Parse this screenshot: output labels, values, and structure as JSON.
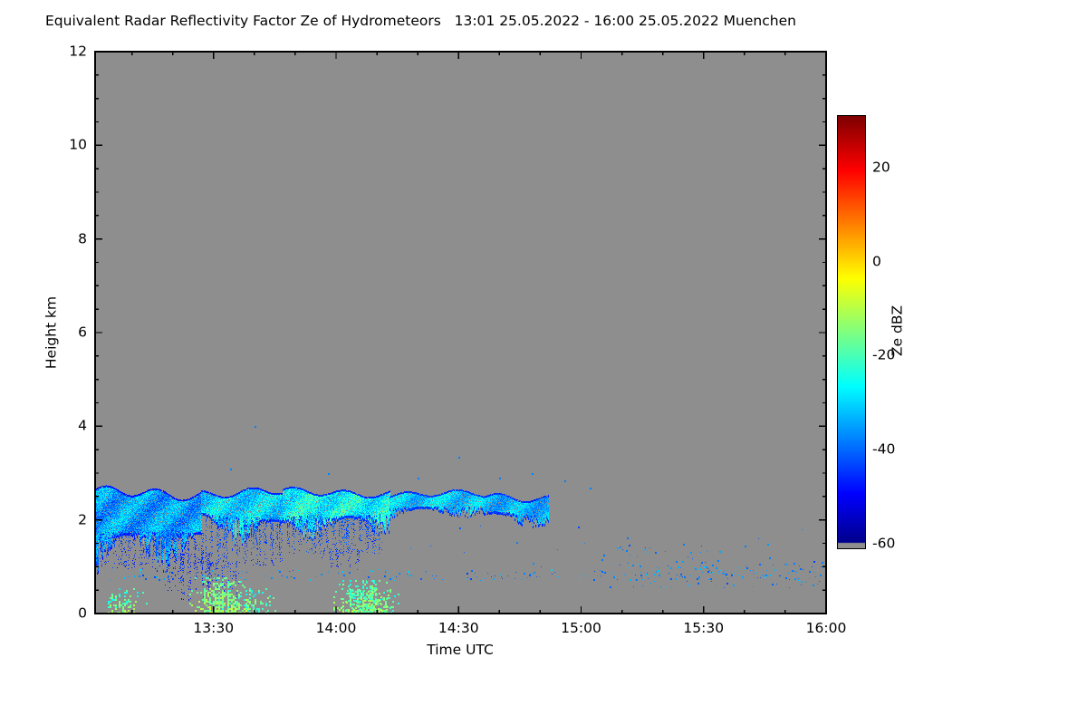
{
  "chart_data": {
    "type": "heatmap",
    "title": "Equivalent Radar Reflectivity Factor Ze of Hydrometeors   13:01 25.05.2022 - 16:00 25.05.2022 Muenchen",
    "station": "Muenchen",
    "time_start": "13:01 25.05.2022",
    "time_end": "16:00 25.05.2022",
    "xlabel": "Time UTC",
    "ylabel": "Height km",
    "x_range_minutes": [
      1,
      180
    ],
    "x_ticks": [
      "13:30",
      "14:00",
      "14:30",
      "15:00",
      "15:30",
      "16:00"
    ],
    "x_tick_minutes": [
      30,
      60,
      90,
      120,
      150,
      180
    ],
    "y_ticks": [
      0,
      2,
      4,
      6,
      8,
      10,
      12
    ],
    "ylim": [
      0,
      12
    ],
    "grid": false,
    "background_color": "#8e8e8e",
    "colorbar": {
      "label": "Ze dBZ",
      "ticks": [
        20,
        0,
        -20,
        -40,
        -60
      ],
      "range": [
        -61,
        31
      ],
      "gray_below": -60,
      "colormap": "jet"
    },
    "features": [
      {
        "kind": "cloud_layer",
        "t0": 1,
        "t1": 27,
        "top": 2.58,
        "base": 1.6,
        "top_jitter": 0.1,
        "base_jitter": 0.45,
        "dbz": -35,
        "dbz_spread": 7,
        "edge_dbz": -47,
        "density": 0.93,
        "phase": 0.3
      },
      {
        "kind": "streaks",
        "t0": 2,
        "t1": 28,
        "top": 1.75,
        "base": 0.95,
        "density": 0.4,
        "dbz": -44,
        "dbz_spread": 4,
        "phase": 1.3
      },
      {
        "kind": "streaks",
        "t0": 18,
        "t1": 29,
        "top": 1.3,
        "base": 0.3,
        "density": 0.33,
        "dbz": -45,
        "dbz_spread": 3,
        "phase": 0.2
      },
      {
        "kind": "cloud_layer",
        "t0": 27,
        "t1": 47,
        "top": 2.6,
        "base": 2.05,
        "top_jitter": 0.08,
        "base_jitter": 0.3,
        "dbz": -30,
        "dbz_spread": 7,
        "edge_dbz": -46,
        "density": 0.92,
        "phase": 1.1
      },
      {
        "kind": "streaks",
        "t0": 28,
        "t1": 47,
        "top": 2.05,
        "base": 1.05,
        "density": 0.5,
        "dbz": -42,
        "dbz_spread": 4,
        "phase": 2.6
      },
      {
        "kind": "streaks",
        "t0": 29,
        "t1": 36,
        "top": 1.1,
        "base": 0.35,
        "density": 0.3,
        "dbz": -45,
        "dbz_spread": 3,
        "phase": 1.1
      },
      {
        "kind": "cloud_layer",
        "t0": 47,
        "t1": 73,
        "top": 2.6,
        "base": 2.1,
        "top_jitter": 0.07,
        "base_jitter": 0.25,
        "dbz": -26,
        "dbz_spread": 8,
        "edge_dbz": -45,
        "density": 0.95,
        "phase": 2.2
      },
      {
        "kind": "streaks",
        "t0": 48,
        "t1": 71,
        "top": 2.1,
        "base": 1.3,
        "density": 0.5,
        "dbz": -41,
        "dbz_spread": 5,
        "phase": 0.6
      },
      {
        "kind": "streaks",
        "t0": 56,
        "t1": 66,
        "top": 1.4,
        "base": 1.0,
        "density": 0.3,
        "dbz": -44,
        "dbz_spread": 3,
        "phase": 2.0
      },
      {
        "kind": "cloud_layer",
        "t0": 73,
        "t1": 96,
        "top": 2.56,
        "base": 2.22,
        "top_jitter": 0.06,
        "base_jitter": 0.12,
        "dbz": -31,
        "dbz_spread": 5,
        "edge_dbz": -44,
        "density": 0.9,
        "phase": 0.8
      },
      {
        "kind": "cloud_layer",
        "t0": 96,
        "t1": 112,
        "top": 2.5,
        "base": 2.12,
        "top_jitter": 0.07,
        "base_jitter": 0.15,
        "dbz": -33,
        "dbz_spread": 5,
        "edge_dbz": -45,
        "density": 0.9,
        "phase": 1.9
      },
      {
        "kind": "patches",
        "t0": 4,
        "t1": 75,
        "top": 0.55,
        "base": 0.02,
        "density": 0.3,
        "dbz": -16,
        "dbz_spread": 7,
        "phase": 0.4
      },
      {
        "kind": "patches",
        "t0": 24,
        "t1": 41,
        "top": 0.78,
        "base": 0.02,
        "density": 0.5,
        "dbz": -12,
        "dbz_spread": 6,
        "phase": 1.7
      },
      {
        "kind": "patches",
        "t0": 55,
        "t1": 73,
        "top": 0.72,
        "base": 0.02,
        "density": 0.45,
        "dbz": -14,
        "dbz_spread": 6,
        "phase": 0.9
      },
      {
        "kind": "speckle",
        "t0": 4,
        "t1": 179,
        "top": 0.95,
        "base": 0.72,
        "density": 0.22,
        "dbz": -37,
        "dbz_spread": 7
      },
      {
        "kind": "speckle",
        "t0": 126,
        "t1": 179,
        "top": 1.15,
        "base": 0.55,
        "density": 0.3,
        "dbz": -37,
        "dbz_spread": 6
      },
      {
        "kind": "speckle",
        "t0": 128,
        "t1": 156,
        "top": 1.55,
        "base": 0.85,
        "density": 0.22,
        "dbz": -38,
        "dbz_spread": 5
      },
      {
        "kind": "speckle",
        "t0": 78,
        "t1": 179,
        "top": 1.9,
        "base": 1.0,
        "density": 0.05,
        "dbz": -39,
        "dbz_spread": 4
      },
      {
        "kind": "speckle",
        "t0": 172,
        "t1": 179,
        "top": 1.15,
        "base": 0.6,
        "density": 0.6,
        "dbz": -41,
        "dbz_spread": 5
      }
    ],
    "dots": [
      [
        40,
        4.0
      ],
      [
        34,
        3.1
      ],
      [
        58,
        3.0
      ],
      [
        80,
        2.9
      ],
      [
        90,
        3.35
      ],
      [
        100,
        2.9
      ],
      [
        108,
        3.0
      ],
      [
        116,
        2.85
      ],
      [
        122,
        2.7
      ],
      [
        131,
        1.35
      ],
      [
        145,
        1.5
      ],
      [
        160,
        1.45
      ],
      [
        152,
        1.05
      ],
      [
        166,
        1.2
      ]
    ]
  }
}
